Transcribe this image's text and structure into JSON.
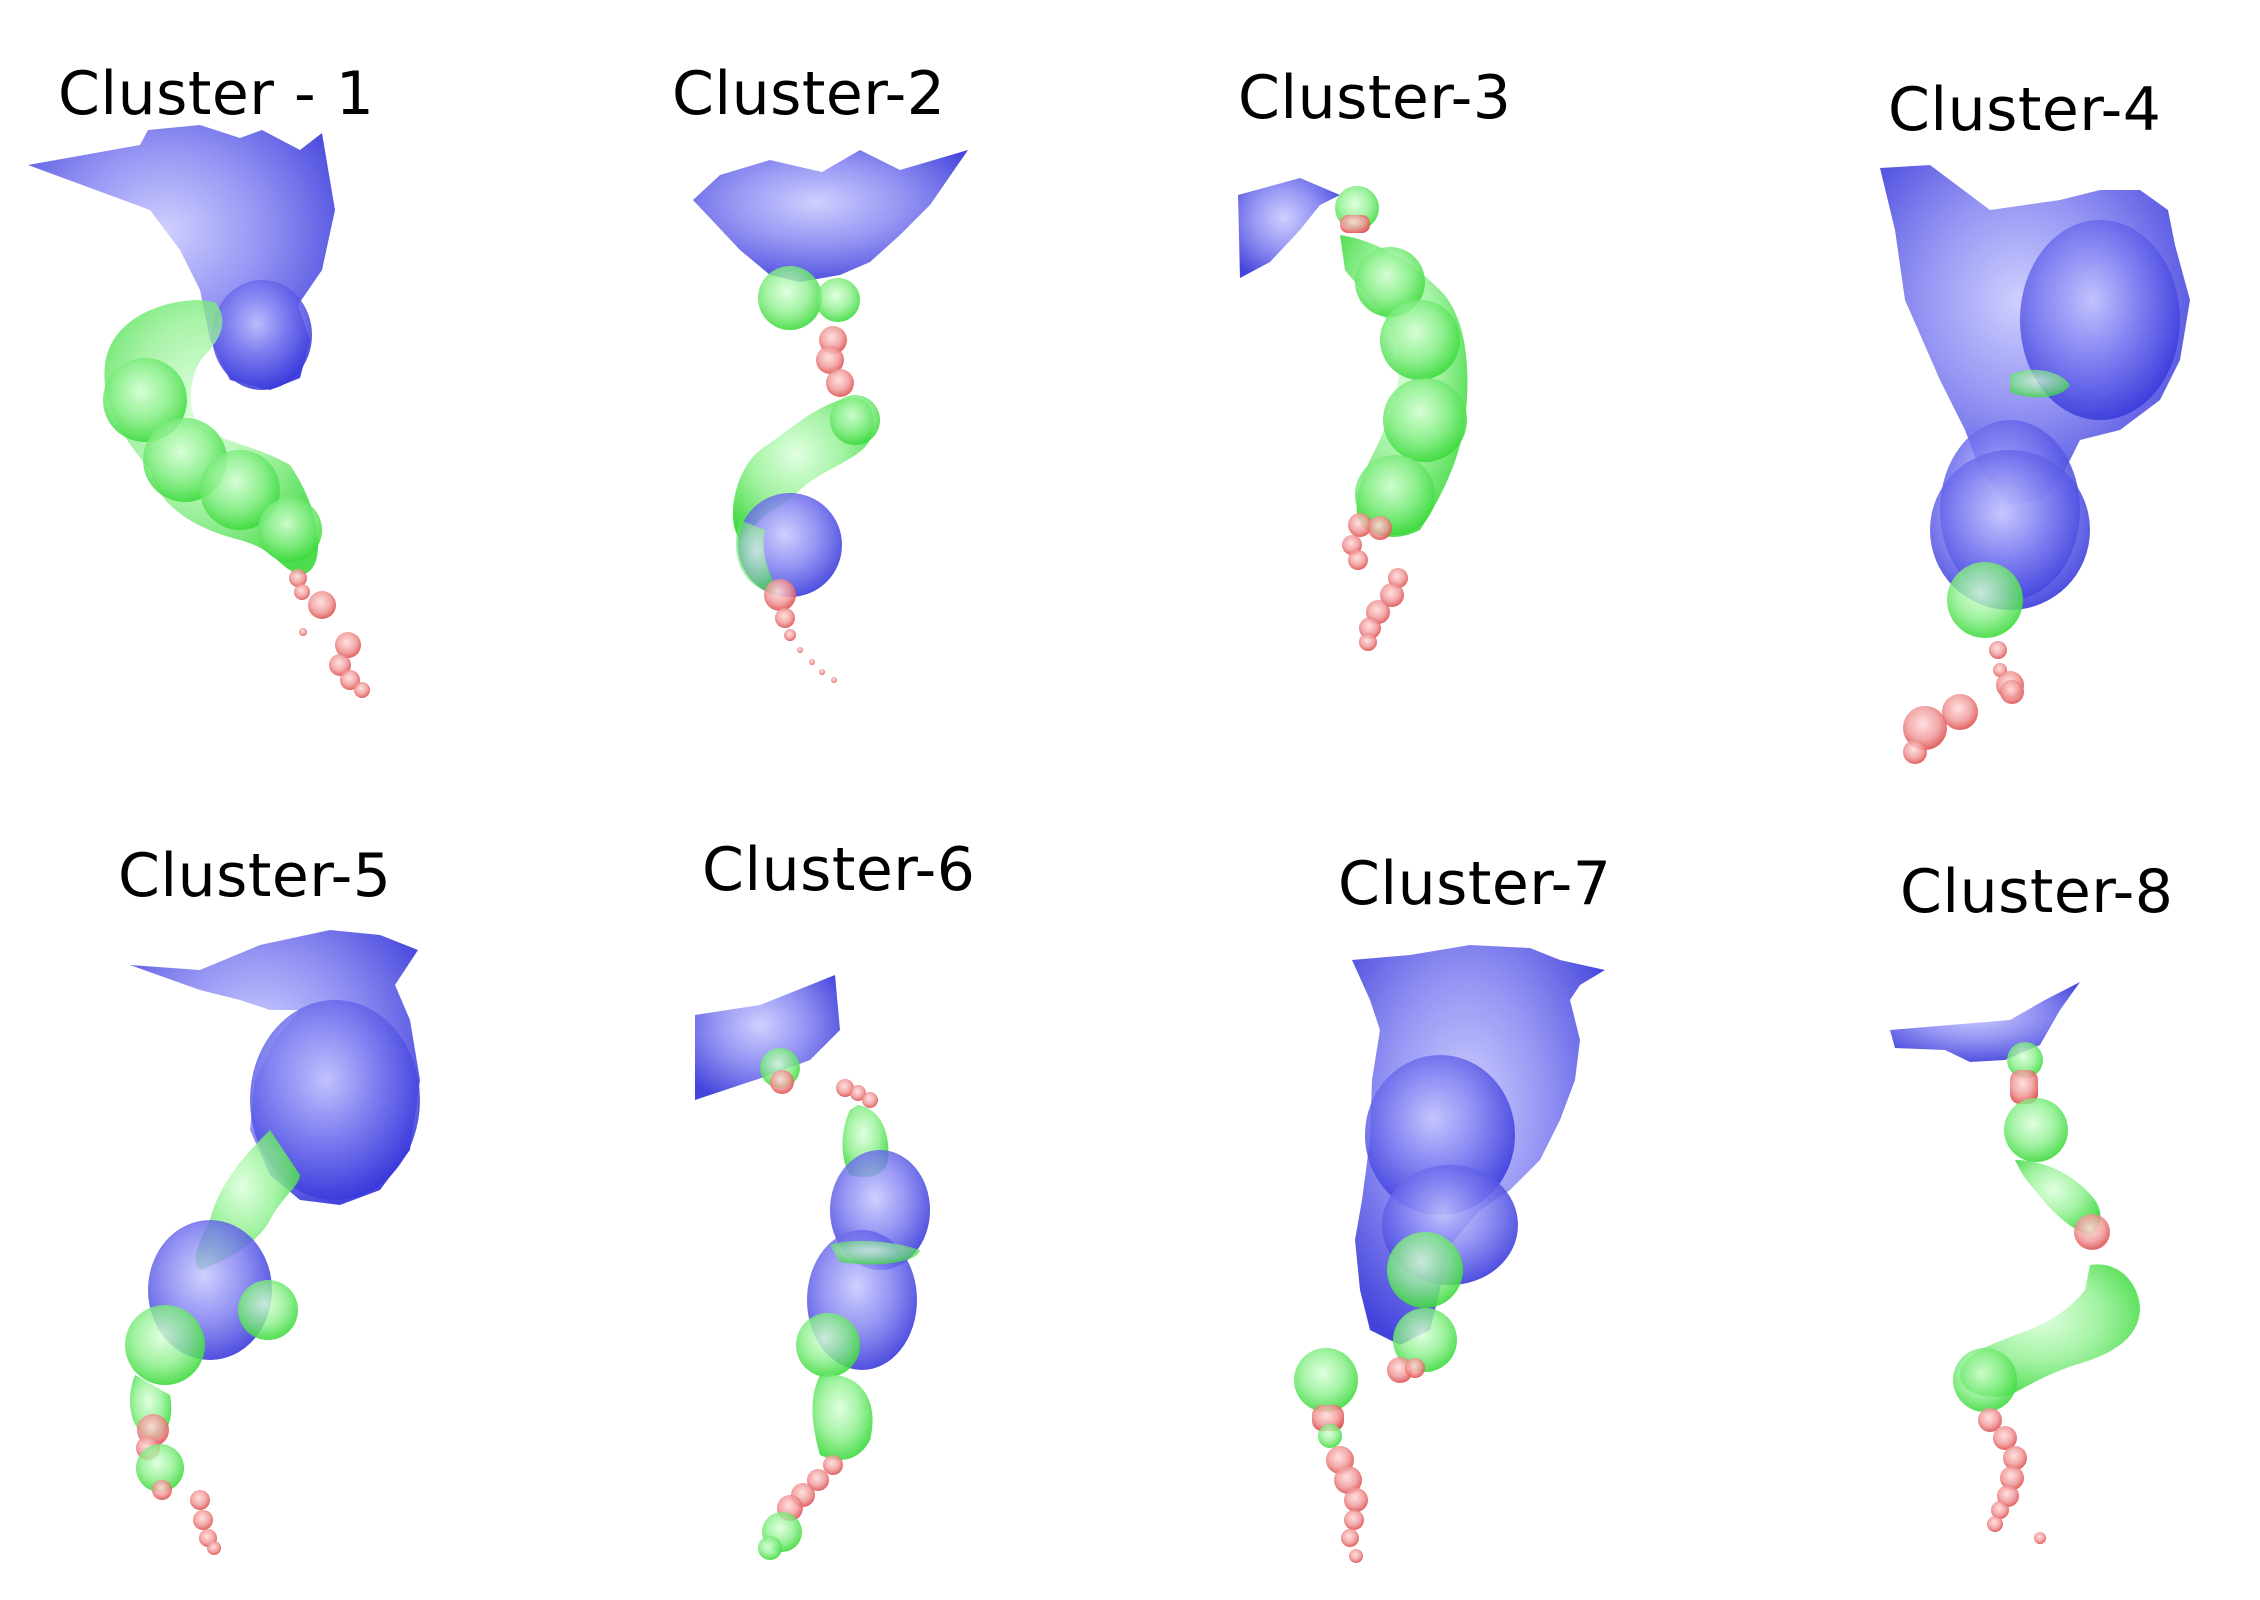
{
  "figure": {
    "panels": [
      {
        "id": "cluster-1",
        "title": "Cluster - 1"
      },
      {
        "id": "cluster-2",
        "title": "Cluster-2"
      },
      {
        "id": "cluster-3",
        "title": "Cluster-3"
      },
      {
        "id": "cluster-4",
        "title": "Cluster-4"
      },
      {
        "id": "cluster-5",
        "title": "Cluster-5"
      },
      {
        "id": "cluster-6",
        "title": "Cluster-6"
      },
      {
        "id": "cluster-7",
        "title": "Cluster-7"
      },
      {
        "id": "cluster-8",
        "title": "Cluster-8"
      }
    ],
    "colors": {
      "blue": "#4040e0",
      "green": "#33dd33",
      "red": "#e04848",
      "background": "#ffffff",
      "text": "#000000"
    }
  }
}
